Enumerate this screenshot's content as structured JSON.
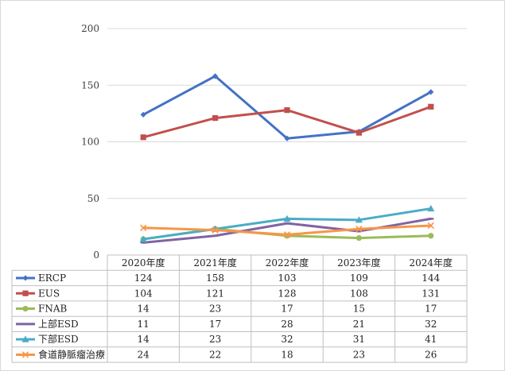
{
  "chart_data": {
    "type": "line",
    "categories": [
      "2020年度",
      "2021年度",
      "2022年度",
      "2023年度",
      "2024年度"
    ],
    "ylim": [
      0,
      200
    ],
    "yticks": [
      0,
      50,
      100,
      150,
      200
    ],
    "grid": true,
    "legend": "data-table",
    "series": [
      {
        "name": "ERCP",
        "values": [
          124,
          158,
          103,
          109,
          144
        ],
        "color": "#4472C4",
        "marker": "diamond"
      },
      {
        "name": "EUS",
        "values": [
          104,
          121,
          128,
          108,
          131
        ],
        "color": "#C0504D",
        "marker": "square"
      },
      {
        "name": "FNAB",
        "values": [
          14,
          23,
          17,
          15,
          17
        ],
        "color": "#9BBB59",
        "marker": "circle"
      },
      {
        "name": "上部ESD",
        "values": [
          11,
          17,
          28,
          21,
          32
        ],
        "color": "#8064A2",
        "marker": "dash"
      },
      {
        "name": "下部ESD",
        "values": [
          14,
          23,
          32,
          31,
          41
        ],
        "color": "#4BACC6",
        "marker": "triangle"
      },
      {
        "name": "食道静脈瘤治療",
        "values": [
          24,
          22,
          18,
          23,
          26
        ],
        "color": "#F79646",
        "marker": "x"
      }
    ]
  }
}
